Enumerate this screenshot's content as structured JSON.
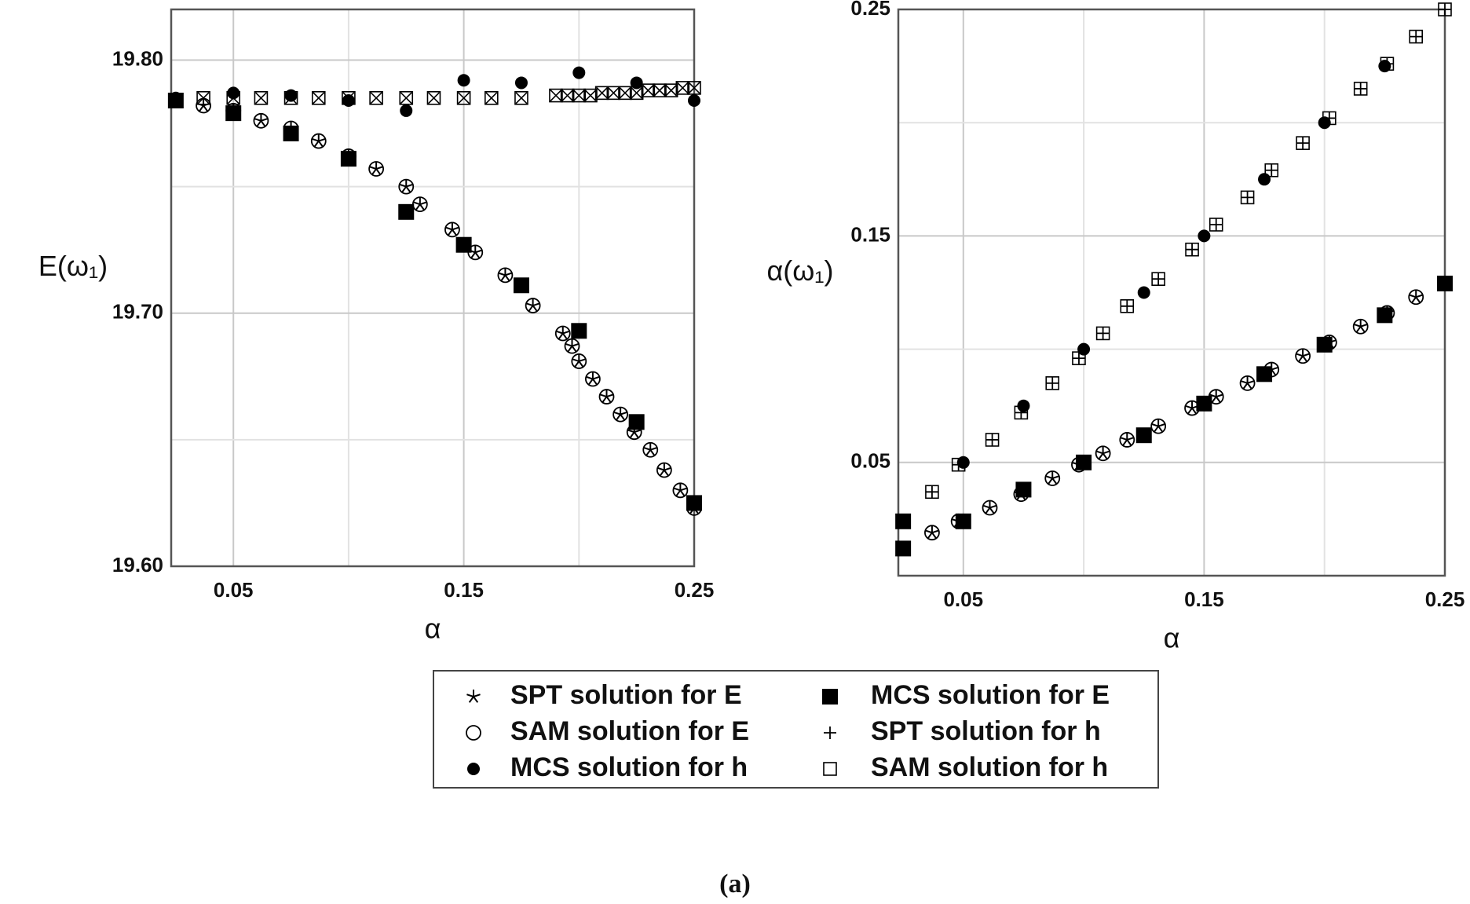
{
  "chart_data": [
    {
      "type": "scatter",
      "x_label": "α",
      "y_label": "E(ω₁)",
      "xlim": [
        0.023,
        0.25
      ],
      "ylim": [
        19.6,
        19.82
      ],
      "xticks": [
        0.05,
        {
          "value": 0.1,
          "label": null
        },
        0.15,
        {
          "value": 0.2,
          "label": null
        },
        0.25
      ],
      "yticks": [
        {
          "value": 19.6,
          "label": "19.60"
        },
        {
          "value": 19.65,
          "label": null
        },
        {
          "value": 19.7,
          "label": "19.70"
        },
        {
          "value": 19.75,
          "label": null
        },
        {
          "value": 19.8,
          "label": "19.80"
        }
      ],
      "grid": true,
      "series": [
        {
          "marker": "square",
          "color": "#000000",
          "x": [
            0.037,
            0.05,
            0.062,
            0.075,
            0.087,
            0.1,
            0.112,
            0.125,
            0.137,
            0.15,
            0.162,
            0.175,
            0.19,
            0.195,
            0.2,
            0.205,
            0.21,
            0.215,
            0.22,
            0.225,
            0.23,
            0.235,
            0.24,
            0.245,
            0.25
          ],
          "values": [
            19.785,
            19.785,
            19.785,
            19.785,
            19.785,
            19.785,
            19.785,
            19.785,
            19.785,
            19.785,
            19.785,
            19.785,
            19.786,
            19.786,
            19.786,
            19.786,
            19.787,
            19.787,
            19.787,
            19.787,
            19.788,
            19.788,
            19.788,
            19.789,
            19.789
          ]
        },
        {
          "marker": "x",
          "color": "#000000",
          "x": [
            0.037,
            0.05,
            0.062,
            0.075,
            0.087,
            0.1,
            0.112,
            0.125,
            0.137,
            0.15,
            0.162,
            0.175,
            0.19,
            0.195,
            0.2,
            0.205,
            0.21,
            0.215,
            0.22,
            0.225,
            0.23,
            0.235,
            0.24,
            0.245,
            0.25
          ],
          "values": [
            19.785,
            19.785,
            19.785,
            19.785,
            19.785,
            19.785,
            19.785,
            19.785,
            19.785,
            19.785,
            19.785,
            19.785,
            19.786,
            19.786,
            19.786,
            19.786,
            19.787,
            19.787,
            19.787,
            19.787,
            19.788,
            19.788,
            19.788,
            19.789,
            19.789
          ]
        },
        {
          "marker": "circle",
          "color": "#000000",
          "x": [
            0.037,
            0.05,
            0.062,
            0.075,
            0.087,
            0.1,
            0.112,
            0.125,
            0.131,
            0.145,
            0.155,
            0.168,
            0.18,
            0.193,
            0.197,
            0.2,
            0.206,
            0.212,
            0.218,
            0.224,
            0.231,
            0.237,
            0.244,
            0.25
          ],
          "values": [
            19.782,
            19.78,
            19.776,
            19.773,
            19.768,
            19.762,
            19.757,
            19.75,
            19.743,
            19.733,
            19.724,
            19.715,
            19.703,
            19.692,
            19.687,
            19.681,
            19.674,
            19.667,
            19.66,
            19.653,
            19.646,
            19.638,
            19.63,
            19.623
          ]
        },
        {
          "marker": "star",
          "color": "#000000",
          "x": [
            0.037,
            0.05,
            0.062,
            0.075,
            0.087,
            0.1,
            0.112,
            0.125,
            0.131,
            0.145,
            0.155,
            0.168,
            0.18,
            0.193,
            0.197,
            0.2,
            0.206,
            0.212,
            0.218,
            0.224,
            0.231,
            0.237,
            0.244,
            0.25
          ],
          "values": [
            19.782,
            19.78,
            19.776,
            19.773,
            19.768,
            19.762,
            19.757,
            19.75,
            19.743,
            19.733,
            19.724,
            19.715,
            19.703,
            19.692,
            19.687,
            19.681,
            19.674,
            19.667,
            19.66,
            19.653,
            19.646,
            19.638,
            19.63,
            19.623
          ]
        },
        {
          "marker": "filled-square",
          "color": "#000000",
          "x": [
            0.025,
            0.05,
            0.075,
            0.1,
            0.125,
            0.15,
            0.175,
            0.2,
            0.225,
            0.25
          ],
          "values": [
            19.784,
            19.779,
            19.771,
            19.761,
            19.74,
            19.727,
            19.711,
            19.693,
            19.657,
            19.625
          ]
        },
        {
          "marker": "dot",
          "color": "#000000",
          "x": [
            0.025,
            0.05,
            0.075,
            0.1,
            0.125,
            0.15,
            0.175,
            0.2,
            0.225,
            0.25
          ],
          "values": [
            19.785,
            19.787,
            19.786,
            19.784,
            19.78,
            19.792,
            19.791,
            19.795,
            19.791,
            19.784
          ]
        }
      ]
    },
    {
      "type": "scatter",
      "x_label": "α",
      "y_label": "α(ω₁)",
      "xlim": [
        0.023,
        0.25
      ],
      "ylim": [
        0,
        0.25
      ],
      "xticks": [
        0.05,
        {
          "value": 0.1,
          "label": null
        },
        0.15,
        {
          "value": 0.2,
          "label": null
        },
        0.25
      ],
      "yticks": [
        0.05,
        {
          "value": 0.1,
          "label": null
        },
        0.15,
        {
          "value": 0.2,
          "label": null
        },
        0.25
      ],
      "grid": true,
      "series": [
        {
          "marker": "square",
          "color": "#000000",
          "x": [
            0.037,
            0.048,
            0.062,
            0.074,
            0.087,
            0.098,
            0.108,
            0.118,
            0.131,
            0.145,
            0.155,
            0.168,
            0.178,
            0.191,
            0.202,
            0.215,
            0.226,
            0.238,
            0.25
          ],
          "values": [
            0.037,
            0.049,
            0.06,
            0.072,
            0.085,
            0.096,
            0.107,
            0.119,
            0.131,
            0.144,
            0.155,
            0.167,
            0.179,
            0.191,
            0.202,
            0.215,
            0.226,
            0.238,
            0.25
          ]
        },
        {
          "marker": "plus",
          "color": "#000000",
          "x": [
            0.037,
            0.048,
            0.062,
            0.074,
            0.087,
            0.098,
            0.108,
            0.118,
            0.131,
            0.145,
            0.155,
            0.168,
            0.178,
            0.191,
            0.202,
            0.215,
            0.226,
            0.238,
            0.25
          ],
          "values": [
            0.037,
            0.049,
            0.06,
            0.072,
            0.085,
            0.096,
            0.107,
            0.119,
            0.131,
            0.144,
            0.155,
            0.167,
            0.179,
            0.191,
            0.202,
            0.215,
            0.226,
            0.238,
            0.25
          ]
        },
        {
          "marker": "circle",
          "color": "#000000",
          "x": [
            0.037,
            0.048,
            0.061,
            0.074,
            0.087,
            0.098,
            0.108,
            0.118,
            0.131,
            0.145,
            0.155,
            0.168,
            0.178,
            0.191,
            0.202,
            0.215,
            0.226,
            0.238
          ],
          "values": [
            0.019,
            0.024,
            0.03,
            0.036,
            0.043,
            0.049,
            0.054,
            0.06,
            0.066,
            0.074,
            0.079,
            0.085,
            0.091,
            0.097,
            0.103,
            0.11,
            0.116,
            0.123
          ]
        },
        {
          "marker": "star",
          "color": "#000000",
          "x": [
            0.037,
            0.048,
            0.061,
            0.074,
            0.087,
            0.098,
            0.108,
            0.118,
            0.131,
            0.145,
            0.155,
            0.168,
            0.178,
            0.191,
            0.202,
            0.215,
            0.226,
            0.238
          ],
          "values": [
            0.019,
            0.024,
            0.03,
            0.036,
            0.043,
            0.049,
            0.054,
            0.06,
            0.066,
            0.074,
            0.079,
            0.085,
            0.091,
            0.097,
            0.103,
            0.11,
            0.116,
            0.123
          ]
        },
        {
          "marker": "filled-square",
          "color": "#000000",
          "x": [
            0.025,
            0.025,
            0.05,
            0.075,
            0.1,
            0.125,
            0.15,
            0.175,
            0.2,
            0.225,
            0.25
          ],
          "values": [
            0.012,
            0.024,
            0.024,
            0.038,
            0.05,
            0.062,
            0.076,
            0.089,
            0.102,
            0.115,
            0.129
          ]
        },
        {
          "marker": "dot",
          "color": "#000000",
          "x": [
            0.05,
            0.075,
            0.1,
            0.125,
            0.15,
            0.175,
            0.2,
            0.225
          ],
          "values": [
            0.05,
            0.075,
            0.1,
            0.125,
            0.15,
            0.175,
            0.2,
            0.225
          ]
        }
      ]
    }
  ],
  "legend": {
    "entries": [
      {
        "name": "SPT solution for E",
        "marker": "star"
      },
      {
        "name": "MCS solution for E",
        "marker": "filled-square"
      },
      {
        "name": "SAM solution for E",
        "marker": "circle"
      },
      {
        "name": "SPT solution for h",
        "marker": "plus"
      },
      {
        "name": "MCS solution for h",
        "marker": "dot"
      },
      {
        "name": "SAM solution for h",
        "marker": "square"
      }
    ]
  },
  "caption": "(a)"
}
